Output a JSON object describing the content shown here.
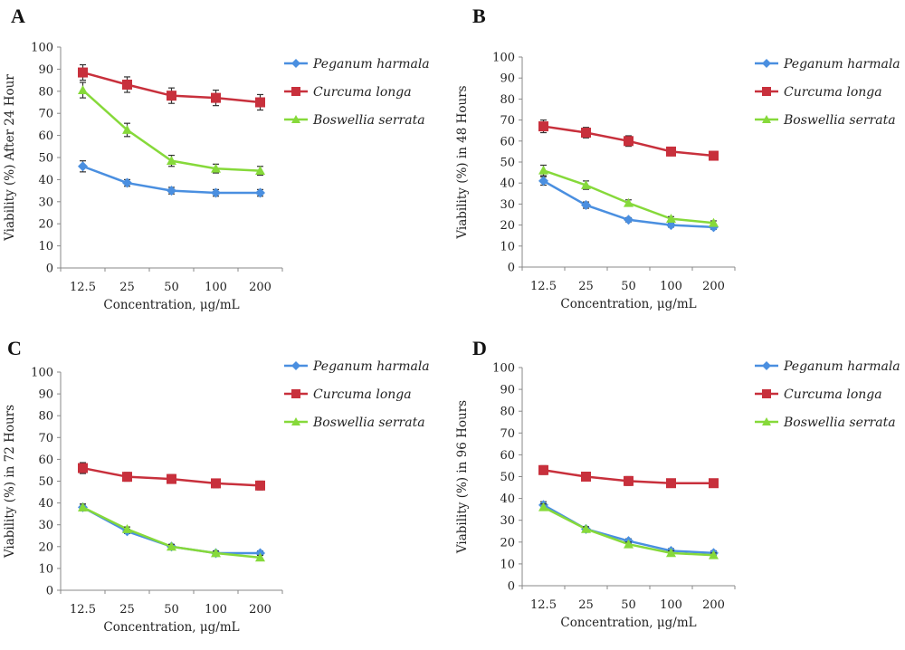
{
  "colors": {
    "Peganum harmala": "#4a8fe0",
    "Curcuma longa": "#c8303c",
    "Boswellia serrata": "#86d93a",
    "axis": "#888888",
    "errorbar": "#333333"
  },
  "chart_data": [
    {
      "panel": "A",
      "type": "line",
      "categories": [
        "12.5",
        "25",
        "50",
        "100",
        "200"
      ],
      "xlabel": "Concentration, μg/mL",
      "ylabel": "Viability (%) After 24 Hour",
      "ylim": [
        0,
        100
      ],
      "yticks": [
        "0",
        "10",
        "20",
        "30",
        "40",
        "50",
        "60",
        "70",
        "80",
        "90",
        "100"
      ],
      "grid": false,
      "legend_position": "top-right",
      "series": [
        {
          "name": "Peganum harmala",
          "marker": "diamond",
          "values": [
            46,
            38.5,
            35,
            34,
            34
          ],
          "errors": [
            2.5,
            1.5,
            1.5,
            1.5,
            1.5
          ]
        },
        {
          "name": "Curcuma longa",
          "marker": "square",
          "values": [
            88.5,
            83,
            78,
            77,
            75
          ],
          "errors": [
            3.5,
            3.5,
            3.5,
            3.5,
            3.5
          ]
        },
        {
          "name": "Boswellia serrata",
          "marker": "triangle",
          "values": [
            80.5,
            62.5,
            48.5,
            45,
            44
          ],
          "errors": [
            3.5,
            3,
            2.5,
            2,
            2
          ]
        }
      ]
    },
    {
      "panel": "B",
      "type": "line",
      "categories": [
        "12.5",
        "25",
        "50",
        "100",
        "200"
      ],
      "xlabel": "Concentration, μg/mL",
      "ylabel": "Viability (%) in 48 Hours",
      "ylim": [
        0,
        100
      ],
      "yticks": [
        "0",
        "10",
        "20",
        "30",
        "40",
        "50",
        "60",
        "70",
        "80",
        "90",
        "100"
      ],
      "grid": false,
      "legend_position": "top-right",
      "series": [
        {
          "name": "Peganum harmala",
          "marker": "diamond",
          "values": [
            41,
            29.5,
            22.5,
            20,
            19
          ],
          "errors": [
            2,
            1.5,
            1,
            1,
            1
          ]
        },
        {
          "name": "Curcuma longa",
          "marker": "square",
          "values": [
            67,
            64,
            60,
            55,
            53
          ],
          "errors": [
            3,
            2.5,
            2.5,
            2,
            2
          ]
        },
        {
          "name": "Boswellia serrata",
          "marker": "triangle",
          "values": [
            46,
            39,
            30.5,
            23,
            21
          ],
          "errors": [
            2.5,
            2,
            1.5,
            1,
            1
          ]
        }
      ]
    },
    {
      "panel": "C",
      "type": "line",
      "categories": [
        "12.5",
        "25",
        "50",
        "100",
        "200"
      ],
      "xlabel": "Concentration, μg/mL",
      "ylabel": "Viability (%) in 72 Hours",
      "ylim": [
        0,
        100
      ],
      "yticks": [
        "0",
        "10",
        "20",
        "30",
        "40",
        "50",
        "60",
        "70",
        "80",
        "90",
        "100"
      ],
      "grid": false,
      "legend_position": "top-right",
      "series": [
        {
          "name": "Peganum harmala",
          "marker": "diamond",
          "values": [
            38,
            27,
            20,
            17,
            17
          ],
          "errors": [
            1.5,
            1,
            1,
            1,
            1
          ]
        },
        {
          "name": "Curcuma longa",
          "marker": "square",
          "values": [
            56,
            52,
            51,
            49,
            48
          ],
          "errors": [
            2.5,
            2,
            2,
            2,
            2
          ]
        },
        {
          "name": "Boswellia serrata",
          "marker": "triangle",
          "values": [
            38,
            28,
            20,
            17,
            15
          ],
          "errors": [
            1.5,
            1,
            1,
            1,
            1
          ]
        }
      ]
    },
    {
      "panel": "D",
      "type": "line",
      "categories": [
        "12.5",
        "25",
        "50",
        "100",
        "200"
      ],
      "xlabel": "Concentration, μg/mL",
      "ylabel": "Viability (%) in 96 Hours",
      "ylim": [
        0,
        100
      ],
      "yticks": [
        "0",
        "10",
        "20",
        "30",
        "40",
        "50",
        "60",
        "70",
        "80",
        "90",
        "100"
      ],
      "grid": false,
      "legend_position": "top-right",
      "series": [
        {
          "name": "Peganum harmala",
          "marker": "diamond",
          "values": [
            37,
            26,
            20.5,
            16,
            15
          ],
          "errors": [
            1.5,
            1,
            1,
            1,
            1
          ]
        },
        {
          "name": "Curcuma longa",
          "marker": "square",
          "values": [
            53,
            50,
            48,
            47,
            47
          ],
          "errors": [
            2,
            2,
            2,
            1.5,
            1.5
          ]
        },
        {
          "name": "Boswellia serrata",
          "marker": "triangle",
          "values": [
            36,
            26,
            19,
            15,
            14
          ],
          "errors": [
            1.5,
            1,
            1,
            1,
            1
          ]
        }
      ]
    }
  ]
}
